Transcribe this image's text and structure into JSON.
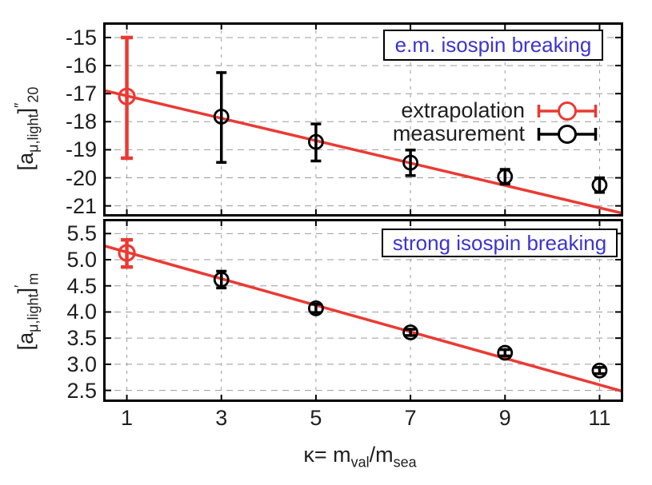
{
  "figure": {
    "background": "#ffffff",
    "axis_color": "#000000",
    "grid_color": "#9b9b9b",
    "text_color": "#1f1f1f",
    "xlabel": {
      "text_main": "κ= m",
      "sub_1": "val",
      "text_mid": "/m",
      "sub_2": "sea"
    },
    "xticks": [
      {
        "value": 1,
        "label": "1"
      },
      {
        "value": 3,
        "label": "3"
      },
      {
        "value": 5,
        "label": "5"
      },
      {
        "value": 7,
        "label": "7"
      },
      {
        "value": 9,
        "label": "9"
      },
      {
        "value": 11,
        "label": "11"
      }
    ]
  },
  "legend": {
    "entries": [
      {
        "label": "extrapolation",
        "color": "#ea3a33"
      },
      {
        "label": "measurement",
        "color": "#000000"
      }
    ]
  },
  "chart_data": [
    {
      "type": "scatter",
      "panel_id": "top",
      "title": "e.m. isospin breaking",
      "title_color": "#3d35cc",
      "ylabel": {
        "open": "[a",
        "sub": "μ,light",
        "close": "]",
        "sup": "″",
        "sub_after": "20"
      },
      "xlim": [
        0.5,
        11.5
      ],
      "ylim": [
        -21.38,
        -14.46
      ],
      "grid": true,
      "legend_position": "upper-right",
      "yticks": [
        {
          "value": -15,
          "label": "-15"
        },
        {
          "value": -16,
          "label": "-16"
        },
        {
          "value": -17,
          "label": "-17"
        },
        {
          "value": -18,
          "label": "-18"
        },
        {
          "value": -19,
          "label": "-19"
        },
        {
          "value": -20,
          "label": "-20"
        },
        {
          "value": -21,
          "label": "-21"
        }
      ],
      "xticks": [
        1,
        3,
        5,
        7,
        9,
        11
      ],
      "fit_line": {
        "name": "extrapolation-line",
        "color": "#ea3a33",
        "x": [
          0.5,
          11.5
        ],
        "y": [
          -16.88,
          -21.27
        ]
      },
      "series": [
        {
          "name": "extrapolation",
          "role": "extrapolation",
          "color": "#ea3a33",
          "points": [
            {
              "x": 1,
              "y": -17.1,
              "err_up": 2.1,
              "err_down": 2.2
            }
          ]
        },
        {
          "name": "measurement",
          "role": "measurement",
          "color": "#000000",
          "points": [
            {
              "x": 3,
              "y": -17.82,
              "err_up": 1.57,
              "err_down": 1.63
            },
            {
              "x": 5,
              "y": -18.72,
              "err_up": 0.64,
              "err_down": 0.68
            },
            {
              "x": 7,
              "y": -19.46,
              "err_up": 0.45,
              "err_down": 0.46
            },
            {
              "x": 9,
              "y": -19.96,
              "err_up": 0.26,
              "err_down": 0.26
            },
            {
              "x": 11,
              "y": -20.26,
              "err_up": 0.26,
              "err_down": 0.26
            }
          ]
        }
      ]
    },
    {
      "type": "scatter",
      "panel_id": "bottom",
      "title": "strong isospin breaking",
      "title_color": "#3d35cc",
      "ylabel": {
        "open": "[a",
        "sub": "μ,light",
        "close": "]",
        "sup": "′",
        "sub_after": "m"
      },
      "xlim": [
        0.5,
        11.5
      ],
      "ylim": [
        2.28,
        5.78
      ],
      "grid": true,
      "yticks": [
        {
          "value": 5.5,
          "label": "5.5"
        },
        {
          "value": 5.0,
          "label": "5.0"
        },
        {
          "value": 4.5,
          "label": "4.5"
        },
        {
          "value": 4.0,
          "label": "4.0"
        },
        {
          "value": 3.5,
          "label": "3.5"
        },
        {
          "value": 3.0,
          "label": "3.0"
        },
        {
          "value": 2.5,
          "label": "2.5"
        }
      ],
      "xticks": [
        1,
        3,
        5,
        7,
        9,
        11
      ],
      "fit_line": {
        "name": "extrapolation-line",
        "color": "#ea3a33",
        "x": [
          0.5,
          11.5
        ],
        "y": [
          5.27,
          2.48
        ]
      },
      "series": [
        {
          "name": "extrapolation",
          "role": "extrapolation",
          "color": "#ea3a33",
          "points": [
            {
              "x": 1,
              "y": 5.13,
              "err_up": 0.25,
              "err_down": 0.27
            }
          ]
        },
        {
          "name": "measurement",
          "role": "measurement",
          "color": "#000000",
          "points": [
            {
              "x": 3,
              "y": 4.62,
              "err_up": 0.16,
              "err_down": 0.16
            },
            {
              "x": 5,
              "y": 4.07,
              "err_up": 0.08,
              "err_down": 0.08
            },
            {
              "x": 7,
              "y": 3.61,
              "err_up": 0.06,
              "err_down": 0.06
            },
            {
              "x": 9,
              "y": 3.22,
              "err_up": 0.06,
              "err_down": 0.06
            },
            {
              "x": 11,
              "y": 2.88,
              "err_up": 0.06,
              "err_down": 0.06
            }
          ]
        }
      ]
    }
  ]
}
